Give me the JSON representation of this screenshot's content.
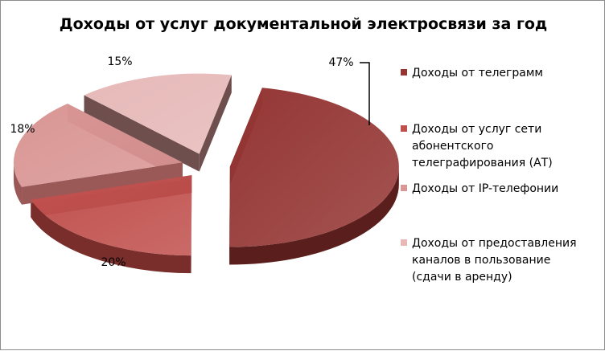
{
  "chart_data": {
    "type": "pie",
    "title": "Доходы от услуг документальной электросвязи за год",
    "categories": [
      "Доходы от телеграмм",
      "Доходы от услуг сети абонентского телеграфирования (АТ)",
      "Доходы от IP-телефонии",
      "Доходы от предоставления каналов в пользование (сдачи в аренду)"
    ],
    "values": [
      47,
      20,
      18,
      15
    ],
    "value_labels": [
      "47%",
      "20%",
      "18%",
      "15%"
    ],
    "legend_lines": [
      [
        "Доходы от телеграмм"
      ],
      [
        "Доходы от услуг сети",
        "абонентского",
        "телеграфирования (АТ)"
      ],
      [
        "Доходы от IP-телефонии"
      ],
      [
        "Доходы от предоставления",
        "каналов в пользование",
        "(сдачи в аренду)"
      ]
    ],
    "colors": [
      "#943634",
      "#c0504d",
      "#d99694",
      "#e6b9b8"
    ],
    "side_colors": [
      "#5a1e1c",
      "#7a2e2c",
      "#9a5957",
      "#6e4f4e"
    ],
    "legend_position": "right",
    "exploded": true,
    "three_d": true
  }
}
